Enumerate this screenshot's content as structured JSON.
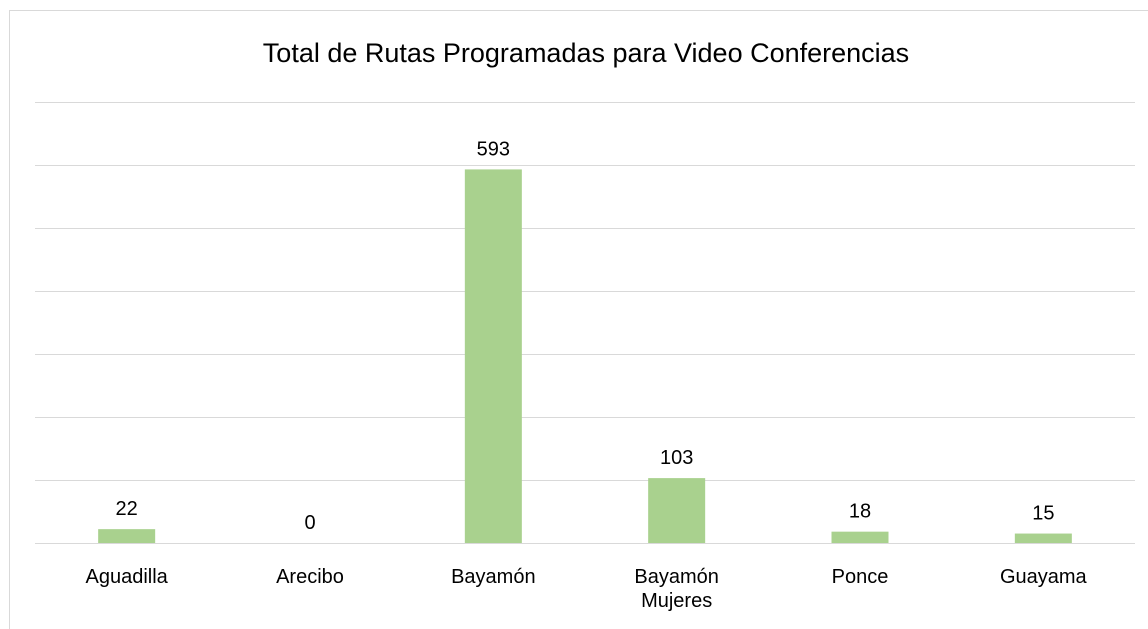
{
  "chart_data": {
    "type": "bar",
    "title": "Total de Rutas Programadas para Video Conferencias",
    "categories": [
      "Aguadilla",
      "Arecibo",
      "Bayamón",
      "Bayamón Mujeres",
      "Ponce",
      "Guayama"
    ],
    "values": [
      22,
      0,
      593,
      103,
      18,
      15
    ],
    "color": "#a9d18e",
    "ylim": [
      0,
      700
    ],
    "yticks": [
      0,
      100,
      200,
      300,
      400,
      500,
      600,
      700
    ],
    "grid": true
  }
}
